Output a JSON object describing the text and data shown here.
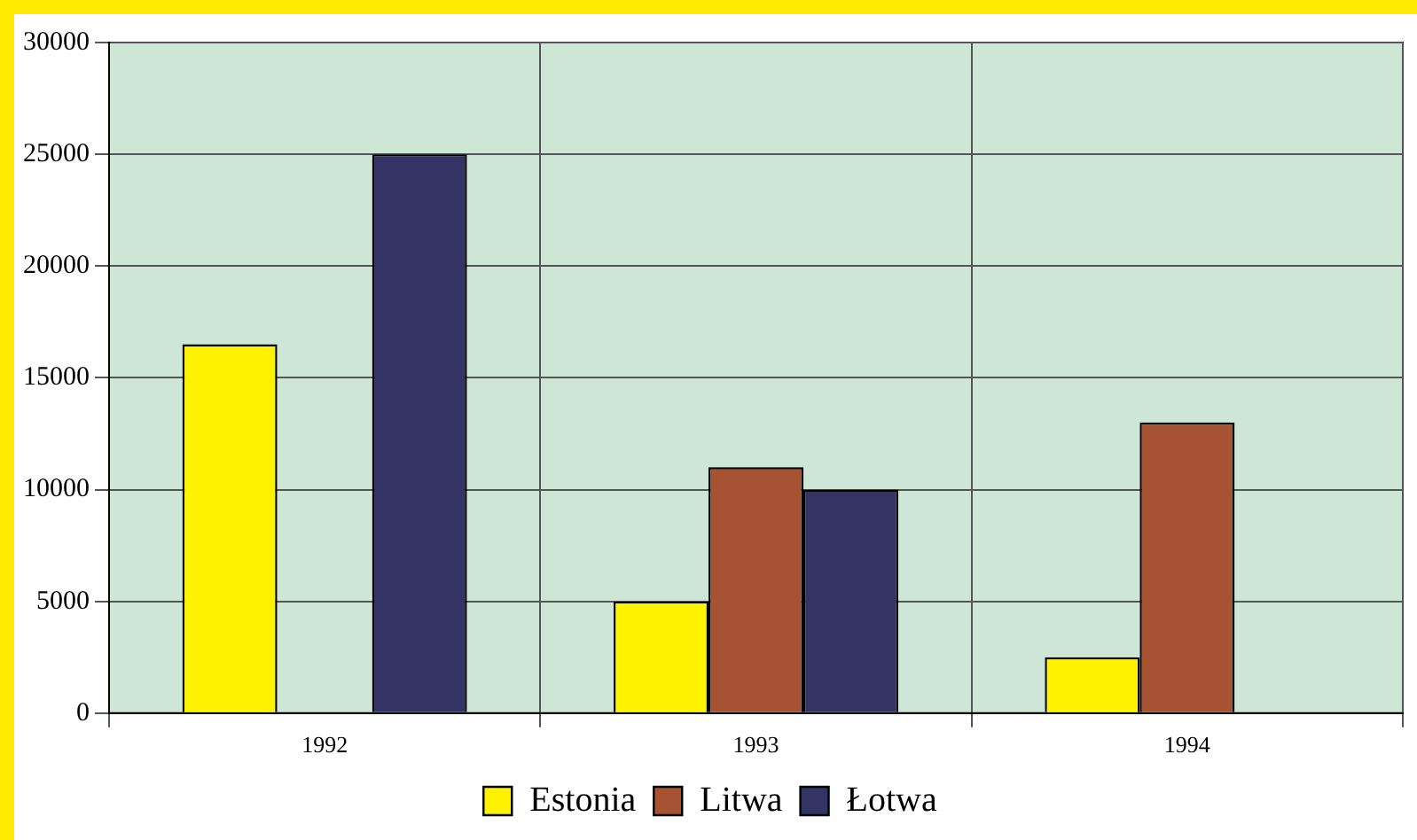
{
  "chart_data": {
    "type": "bar",
    "categories": [
      "1992",
      "1993",
      "1994"
    ],
    "series": [
      {
        "name": "Estonia",
        "color": "#fff200",
        "values": [
          16500,
          5000,
          2500
        ]
      },
      {
        "name": "Litwa",
        "color": "#a65233",
        "values": [
          null,
          11000,
          13000
        ]
      },
      {
        "name": "Łotwa",
        "color": "#333366",
        "values": [
          25000,
          10000,
          null
        ]
      }
    ],
    "ylim": [
      0,
      30000
    ],
    "yticks": [
      0,
      5000,
      10000,
      15000,
      20000,
      25000,
      30000
    ],
    "grid": true,
    "legend": "bottom"
  }
}
